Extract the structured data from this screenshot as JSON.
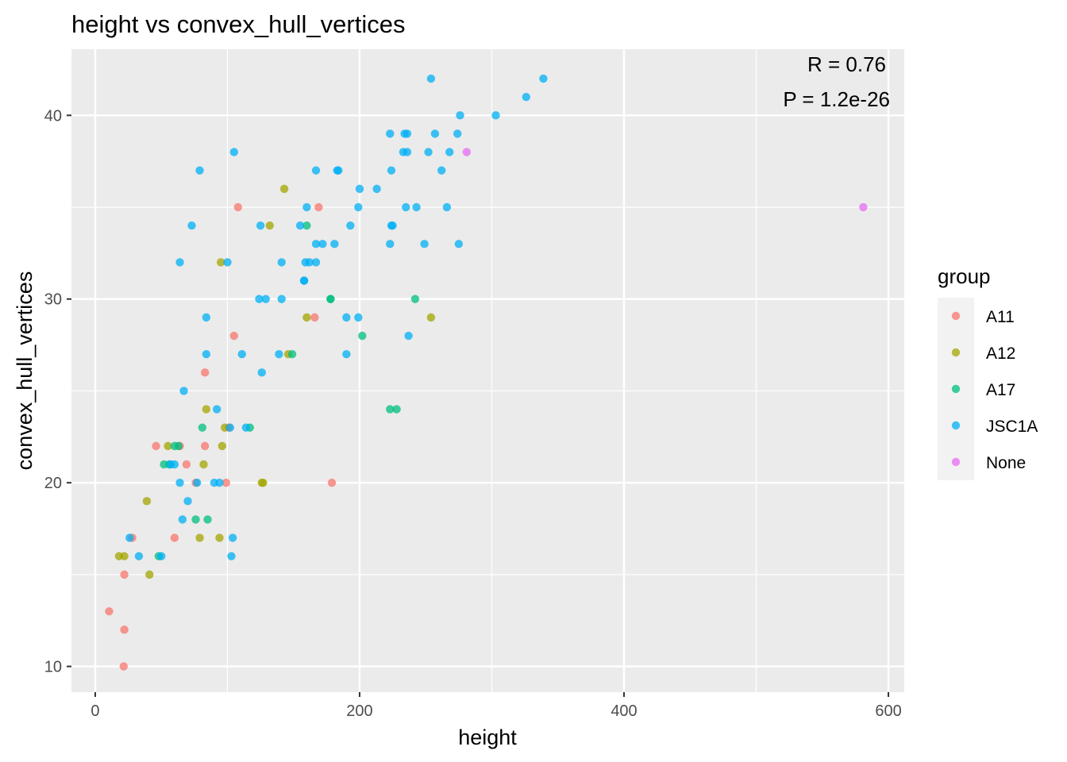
{
  "chart_data": {
    "type": "scatter",
    "title": "height vs convex_hull_vertices",
    "xlabel": "height",
    "ylabel": "convex_hull_vertices",
    "xlim": [
      -18,
      612
    ],
    "ylim": [
      8.6,
      43.6
    ],
    "x_ticks": [
      0,
      200,
      400,
      600
    ],
    "y_ticks": [
      10,
      20,
      30,
      40
    ],
    "x_tick_labels": [
      "0",
      "200",
      "400",
      "600"
    ],
    "y_tick_labels": [
      "10",
      "20",
      "30",
      "40"
    ],
    "grid": true,
    "legend_position": "right",
    "legend_title": "group",
    "annotations": [
      "R = 0.76",
      "P = 1.2e-26"
    ],
    "series": [
      {
        "name": "A11",
        "color": "#F8766D",
        "points": [
          [
            10.5,
            13
          ],
          [
            21.5,
            10
          ],
          [
            22,
            12
          ],
          [
            22,
            15
          ],
          [
            28,
            17
          ],
          [
            46,
            22
          ],
          [
            60,
            17
          ],
          [
            64,
            22
          ],
          [
            69,
            21
          ],
          [
            76,
            20
          ],
          [
            83,
            26
          ],
          [
            83,
            22
          ],
          [
            99,
            20
          ],
          [
            101,
            23
          ],
          [
            105,
            28
          ],
          [
            108,
            35
          ],
          [
            166,
            29
          ],
          [
            169,
            35
          ],
          [
            179,
            20
          ]
        ]
      },
      {
        "name": "A12",
        "color": "#A3A500",
        "points": [
          [
            18,
            16
          ],
          [
            22,
            16
          ],
          [
            39,
            19
          ],
          [
            41,
            15
          ],
          [
            55,
            22
          ],
          [
            79,
            17
          ],
          [
            82,
            21
          ],
          [
            84,
            24
          ],
          [
            94,
            17
          ],
          [
            95,
            32
          ],
          [
            96,
            22
          ],
          [
            98,
            23
          ],
          [
            126,
            20
          ],
          [
            127,
            20
          ],
          [
            132,
            34
          ],
          [
            143,
            36
          ],
          [
            146,
            27
          ],
          [
            160,
            29
          ],
          [
            254,
            29
          ]
        ]
      },
      {
        "name": "A17",
        "color": "#00BF7D",
        "points": [
          [
            48,
            16
          ],
          [
            52,
            21
          ],
          [
            56,
            21
          ],
          [
            60,
            22
          ],
          [
            63,
            22
          ],
          [
            76,
            18
          ],
          [
            81,
            23
          ],
          [
            85,
            18
          ],
          [
            117,
            23
          ],
          [
            149,
            27
          ],
          [
            160,
            34
          ],
          [
            178,
            30
          ],
          [
            178,
            30
          ],
          [
            202,
            28
          ],
          [
            223,
            24
          ],
          [
            228,
            24
          ],
          [
            242,
            30
          ]
        ]
      },
      {
        "name": "JSC1A",
        "color": "#00B0F6",
        "points": [
          [
            26,
            17
          ],
          [
            33,
            16
          ],
          [
            50,
            16
          ],
          [
            57,
            21
          ],
          [
            60,
            21
          ],
          [
            64,
            20
          ],
          [
            64,
            32
          ],
          [
            66,
            18
          ],
          [
            67,
            25
          ],
          [
            70,
            19
          ],
          [
            73,
            34
          ],
          [
            77,
            20
          ],
          [
            79,
            37
          ],
          [
            84,
            29
          ],
          [
            84,
            27
          ],
          [
            90,
            20
          ],
          [
            92,
            24
          ],
          [
            94,
            20
          ],
          [
            100,
            32
          ],
          [
            102,
            23
          ],
          [
            103,
            16
          ],
          [
            104,
            17
          ],
          [
            105,
            38
          ],
          [
            111,
            27
          ],
          [
            114,
            23
          ],
          [
            124,
            30
          ],
          [
            125,
            34
          ],
          [
            126,
            26
          ],
          [
            129,
            30
          ],
          [
            139,
            27
          ],
          [
            141,
            32
          ],
          [
            141,
            30
          ],
          [
            155,
            34
          ],
          [
            158,
            31
          ],
          [
            158,
            31
          ],
          [
            159,
            32
          ],
          [
            160,
            35
          ],
          [
            162,
            32
          ],
          [
            167,
            37
          ],
          [
            167,
            33
          ],
          [
            167,
            32
          ],
          [
            172,
            33
          ],
          [
            181,
            33
          ],
          [
            183,
            37
          ],
          [
            184,
            37
          ],
          [
            193,
            34
          ],
          [
            199,
            29
          ],
          [
            199,
            35
          ],
          [
            200,
            36
          ],
          [
            190,
            29
          ],
          [
            190,
            27
          ],
          [
            213,
            36
          ],
          [
            223,
            39
          ],
          [
            223,
            33
          ],
          [
            224,
            37
          ],
          [
            224,
            34
          ],
          [
            225,
            34
          ],
          [
            233,
            38
          ],
          [
            234,
            39
          ],
          [
            236,
            39
          ],
          [
            236,
            38
          ],
          [
            235,
            35
          ],
          [
            237,
            28
          ],
          [
            243,
            35
          ],
          [
            249,
            33
          ],
          [
            252,
            38
          ],
          [
            254,
            42
          ],
          [
            257,
            39
          ],
          [
            262,
            37
          ],
          [
            266,
            35
          ],
          [
            268,
            38
          ],
          [
            274,
            39
          ],
          [
            275,
            33
          ],
          [
            276,
            40
          ],
          [
            303,
            40
          ],
          [
            326,
            41
          ],
          [
            339,
            42
          ]
        ]
      },
      {
        "name": "None",
        "color": "#E76BF3",
        "points": [
          [
            281,
            38
          ],
          [
            581,
            35
          ]
        ]
      }
    ]
  }
}
